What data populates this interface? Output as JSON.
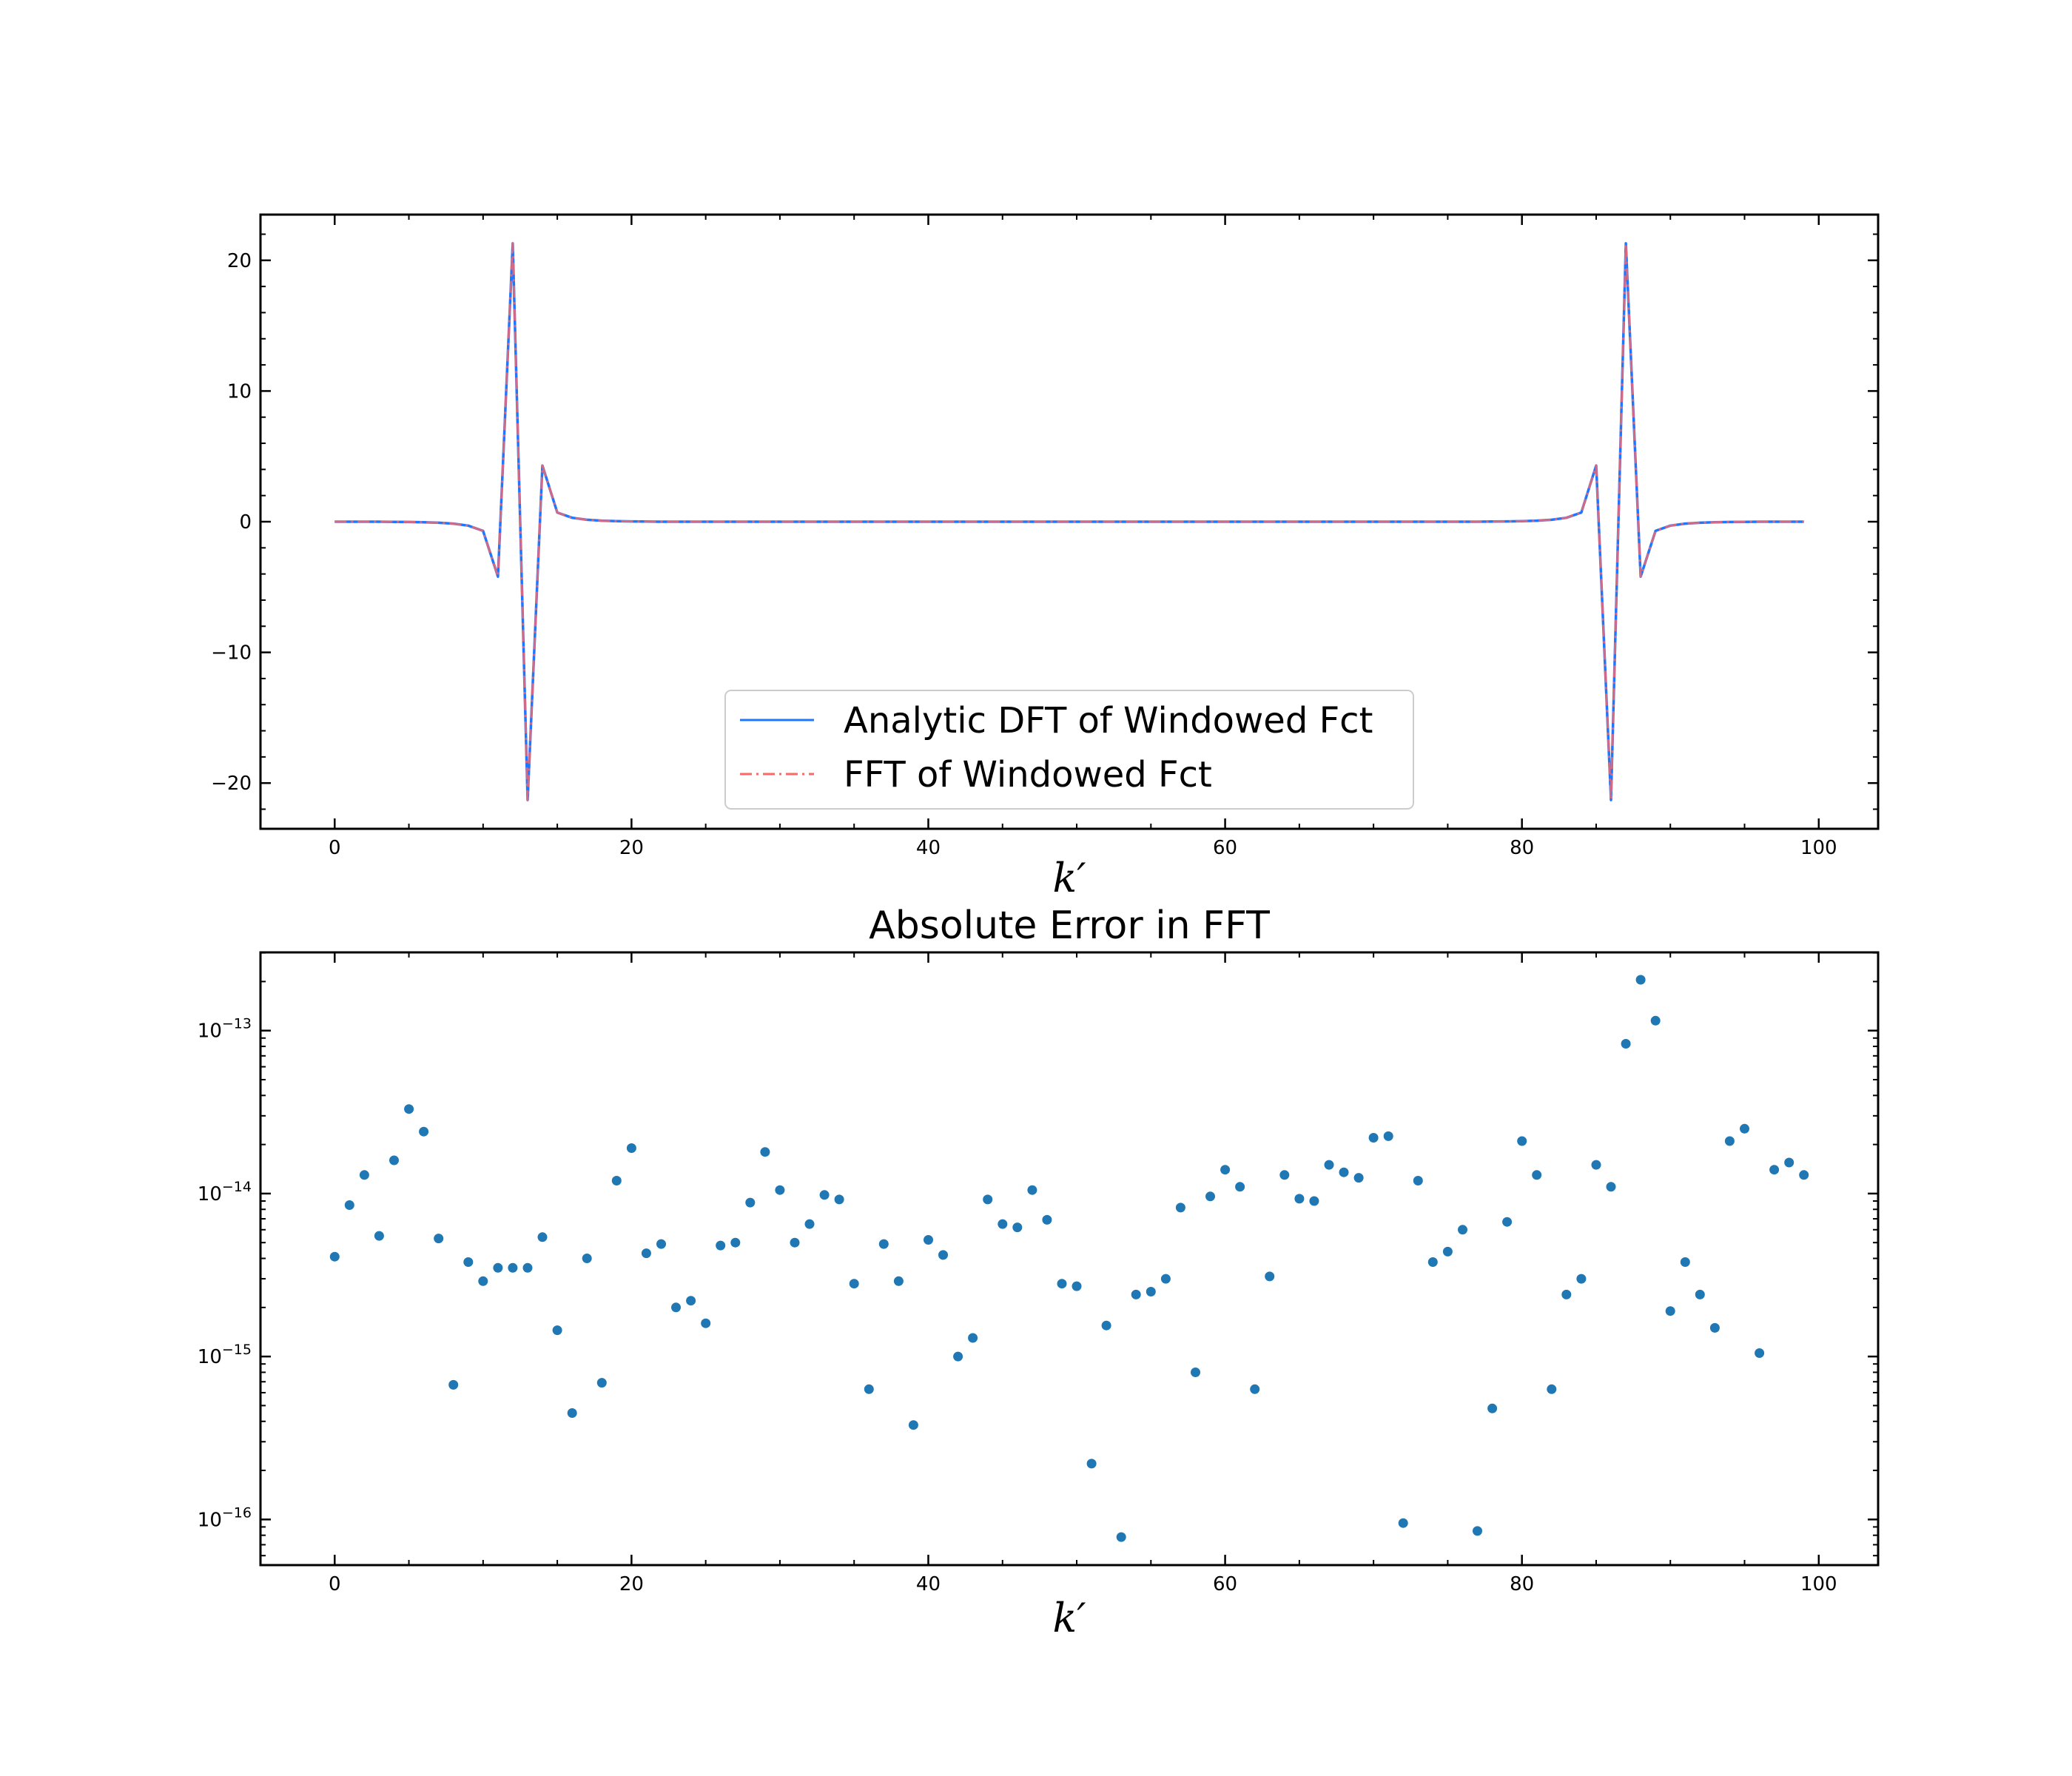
{
  "chart_data": [
    {
      "type": "line",
      "title": "",
      "xlabel": "k′",
      "ylabel": "",
      "xlim": [
        -5,
        104
      ],
      "ylim": [
        -23.5,
        23.5
      ],
      "x_ticks": [
        0,
        20,
        40,
        60,
        80,
        100
      ],
      "x_tick_labels": [
        "0",
        "20",
        "40",
        "60",
        "80",
        "100"
      ],
      "y_ticks": [
        -20,
        -10,
        0,
        10,
        20
      ],
      "y_tick_labels": [
        "−20",
        "−10",
        "0",
        "10",
        "20"
      ],
      "grid": false,
      "legend_position": "lower center",
      "x": [
        0,
        1,
        2,
        3,
        4,
        5,
        6,
        7,
        8,
        9,
        10,
        11,
        12,
        13,
        14,
        15,
        16,
        17,
        18,
        19,
        20,
        21,
        22,
        23,
        24,
        25,
        26,
        27,
        28,
        29,
        30,
        31,
        32,
        33,
        34,
        35,
        36,
        37,
        38,
        39,
        40,
        41,
        42,
        43,
        44,
        45,
        46,
        47,
        48,
        49,
        50,
        51,
        52,
        53,
        54,
        55,
        56,
        57,
        58,
        59,
        60,
        61,
        62,
        63,
        64,
        65,
        66,
        67,
        68,
        69,
        70,
        71,
        72,
        73,
        74,
        75,
        76,
        77,
        78,
        79,
        80,
        81,
        82,
        83,
        84,
        85,
        86,
        87,
        88,
        89,
        90,
        91,
        92,
        93,
        94,
        95,
        96,
        97,
        98,
        99
      ],
      "series": [
        {
          "name": "Analytic DFT of Windowed Fct",
          "color": "#1f77ff",
          "style": "solid",
          "values": [
            0,
            0,
            0,
            0,
            -0.01,
            -0.02,
            -0.04,
            -0.08,
            -0.15,
            -0.3,
            -0.7,
            -4.2,
            21.3,
            -21.3,
            4.3,
            0.7,
            0.3,
            0.15,
            0.08,
            0.04,
            0.02,
            0.01,
            0,
            0,
            0,
            0,
            0,
            0,
            0,
            0,
            0,
            0,
            0,
            0,
            0,
            0,
            0,
            0,
            0,
            0,
            0,
            0,
            0,
            0,
            0,
            0,
            0,
            0,
            0,
            0,
            0,
            0,
            0,
            0,
            0,
            0,
            0,
            0,
            0,
            0,
            0,
            0,
            0,
            0,
            0,
            0,
            0,
            0,
            0,
            0,
            0,
            0,
            0,
            0,
            0,
            0,
            0,
            0,
            0.01,
            0.02,
            0.04,
            0.08,
            0.15,
            0.3,
            0.7,
            4.3,
            -21.3,
            21.3,
            -4.2,
            -0.7,
            -0.3,
            -0.15,
            -0.08,
            -0.04,
            -0.02,
            -0.01,
            0,
            0,
            0,
            0
          ]
        },
        {
          "name": "FFT of Windowed Fct",
          "color": "#ff6666",
          "style": "dashdot",
          "values": [
            0,
            0,
            0,
            0,
            -0.01,
            -0.02,
            -0.04,
            -0.08,
            -0.15,
            -0.3,
            -0.7,
            -4.2,
            21.3,
            -21.3,
            4.3,
            0.7,
            0.3,
            0.15,
            0.08,
            0.04,
            0.02,
            0.01,
            0,
            0,
            0,
            0,
            0,
            0,
            0,
            0,
            0,
            0,
            0,
            0,
            0,
            0,
            0,
            0,
            0,
            0,
            0,
            0,
            0,
            0,
            0,
            0,
            0,
            0,
            0,
            0,
            0,
            0,
            0,
            0,
            0,
            0,
            0,
            0,
            0,
            0,
            0,
            0,
            0,
            0,
            0,
            0,
            0,
            0,
            0,
            0,
            0,
            0,
            0,
            0,
            0,
            0,
            0,
            0,
            0.01,
            0.02,
            0.04,
            0.08,
            0.15,
            0.3,
            0.7,
            4.3,
            -21.3,
            21.3,
            -4.2,
            -0.7,
            -0.3,
            -0.15,
            -0.08,
            -0.04,
            -0.02,
            -0.01,
            0,
            0,
            0,
            0
          ]
        }
      ]
    },
    {
      "type": "scatter",
      "title": "Absolute Error in FFT",
      "xlabel": "k′",
      "ylabel": "",
      "xlim": [
        -5,
        104
      ],
      "ylim_log10": [
        -16.28,
        -12.52
      ],
      "y_scale": "log",
      "x_ticks": [
        0,
        20,
        40,
        60,
        80,
        100
      ],
      "x_tick_labels": [
        "0",
        "20",
        "40",
        "60",
        "80",
        "100"
      ],
      "y_ticks_log10": [
        -16,
        -15,
        -14,
        -13
      ],
      "y_tick_labels": [
        {
          "base": "10",
          "exp": "−16"
        },
        {
          "base": "10",
          "exp": "−15"
        },
        {
          "base": "10",
          "exp": "−14"
        },
        {
          "base": "10",
          "exp": "−13"
        }
      ],
      "grid": false,
      "marker_color": "#1f77b4",
      "x": [
        0,
        1,
        2,
        3,
        4,
        5,
        6,
        7,
        8,
        9,
        10,
        11,
        12,
        13,
        14,
        15,
        16,
        17,
        18,
        19,
        20,
        21,
        22,
        23,
        24,
        25,
        26,
        27,
        28,
        29,
        30,
        31,
        32,
        33,
        34,
        35,
        36,
        37,
        38,
        39,
        40,
        41,
        42,
        43,
        44,
        45,
        46,
        47,
        48,
        49,
        50,
        51,
        52,
        53,
        54,
        55,
        56,
        57,
        58,
        59,
        60,
        61,
        62,
        63,
        64,
        65,
        66,
        67,
        68,
        69,
        70,
        71,
        72,
        73,
        74,
        75,
        76,
        77,
        78,
        79,
        80,
        81,
        82,
        83,
        84,
        85,
        86,
        87,
        88,
        89,
        90,
        91,
        92,
        93,
        94,
        95,
        96,
        97,
        98,
        99
      ],
      "values": [
        4.1e-15,
        8.5e-15,
        1.3e-14,
        5.5e-15,
        1.6e-14,
        3.3e-14,
        2.4e-14,
        5.3e-15,
        6.7e-16,
        3.8e-15,
        2.9e-15,
        3.5e-15,
        3.5e-15,
        3.5e-15,
        5.4e-15,
        1.45e-15,
        4.5e-16,
        4e-15,
        6.9e-16,
        1.2e-14,
        1.9e-14,
        4.3e-15,
        4.9e-15,
        2e-15,
        2.2e-15,
        1.6e-15,
        4.8e-15,
        5e-15,
        8.8e-15,
        1.8e-14,
        1.05e-14,
        5e-15,
        6.5e-15,
        9.8e-15,
        9.2e-15,
        2.8e-15,
        6.3e-16,
        4.9e-15,
        2.9e-15,
        3.8e-16,
        5.2e-15,
        4.2e-15,
        1e-15,
        1.3e-15,
        9.2e-15,
        6.5e-15,
        6.2e-15,
        1.05e-14,
        6.9e-15,
        2.8e-15,
        2.7e-15,
        2.2e-16,
        1.55e-15,
        7.8e-17,
        2.4e-15,
        2.5e-15,
        3e-15,
        8.2e-15,
        8e-16,
        9.6e-15,
        1.4e-14,
        1.1e-14,
        6.3e-16,
        3.1e-15,
        1.3e-14,
        9.3e-15,
        9e-15,
        1.5e-14,
        1.35e-14,
        1.25e-14,
        2.2e-14,
        2.25e-14,
        9.5e-17,
        1.2e-14,
        3.8e-15,
        4.4e-15,
        6e-15,
        8.5e-17,
        4.8e-16,
        6.7e-15,
        2.1e-14,
        1.3e-14,
        6.3e-16,
        2.4e-15,
        3e-15,
        1.5e-14,
        1.1e-14,
        8.3e-14,
        2.05e-13,
        1.15e-13,
        1.9e-15,
        3.8e-15,
        2.4e-15,
        1.5e-15,
        2.1e-14,
        2.5e-14,
        1.05e-15,
        1.4e-14,
        1.55e-14,
        1.3e-14
      ]
    }
  ]
}
